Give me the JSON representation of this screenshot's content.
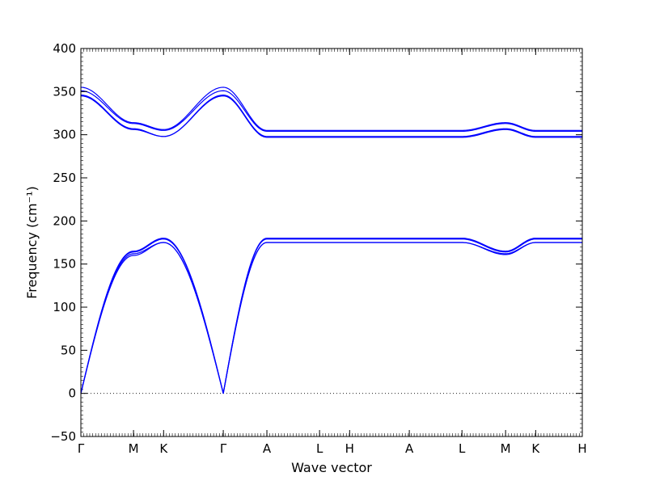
{
  "chart_data": {
    "type": "line",
    "title": "",
    "xlabel": "Wave vector",
    "ylabel": "Frequency (cm⁻¹)",
    "ylim": [
      -50,
      400
    ],
    "yticks": [
      -50,
      0,
      50,
      100,
      150,
      200,
      250,
      300,
      350,
      400
    ],
    "yticklabels": [
      "−50",
      "0",
      "50",
      "100",
      "150",
      "200",
      "250",
      "300",
      "350",
      "400"
    ],
    "high_symmetry_points": [
      {
        "label": "Γ",
        "k": 0.0
      },
      {
        "label": "M",
        "k": 0.105
      },
      {
        "label": "K",
        "k": 0.165
      },
      {
        "label": "Γ",
        "k": 0.284
      },
      {
        "label": "A",
        "k": 0.371
      },
      {
        "label": "L",
        "k": 0.476
      },
      {
        "label": "H",
        "k": 0.536
      },
      {
        "label": "A",
        "k": 0.655
      },
      {
        "label": "L",
        "k": 0.76
      },
      {
        "label": "M",
        "k": 0.847
      },
      {
        "label": "K",
        "k": 0.907
      },
      {
        "label": "H",
        "k": 1.0
      }
    ],
    "zero_line": {
      "y": 0,
      "style": "dotted"
    },
    "series_color": "#0000ff",
    "series": [
      {
        "x": [
          0.0,
          0.105,
          0.165,
          0.284,
          0.371,
          0.476,
          0.536,
          0.655,
          0.76,
          0.847,
          0.907,
          1.0
        ],
        "y": [
          0,
          160,
          175,
          0,
          175,
          175,
          175,
          175,
          175,
          161,
          175,
          175
        ]
      },
      {
        "x": [
          0.0,
          0.105,
          0.165,
          0.284,
          0.371,
          0.476,
          0.536,
          0.655,
          0.76,
          0.847,
          0.907,
          1.0
        ],
        "y": [
          0,
          162,
          175,
          0,
          175,
          175,
          175,
          175,
          175,
          162,
          175,
          175
        ]
      },
      {
        "x": [
          0.0,
          0.105,
          0.165,
          0.284,
          0.371,
          0.476,
          0.536,
          0.655,
          0.76,
          0.847,
          0.907,
          1.0
        ],
        "y": [
          0,
          164,
          179,
          0,
          179,
          179,
          179,
          179,
          179,
          164,
          179,
          179
        ]
      },
      {
        "x": [
          0.0,
          0.105,
          0.165,
          0.284,
          0.371,
          0.476,
          0.536,
          0.655,
          0.76,
          0.847,
          0.907,
          1.0
        ],
        "y": [
          0,
          165,
          180,
          0,
          180,
          180,
          180,
          180,
          180,
          165,
          180,
          180
        ]
      },
      {
        "x": [
          0.0,
          0.105,
          0.165,
          0.284,
          0.371,
          0.476,
          0.536,
          0.655,
          0.76,
          0.847,
          0.907,
          1.0
        ],
        "y": [
          345,
          306,
          298,
          345,
          297,
          297,
          297,
          297,
          297,
          306,
          297,
          297
        ]
      },
      {
        "x": [
          0.0,
          0.105,
          0.165,
          0.284,
          0.371,
          0.476,
          0.536,
          0.655,
          0.76,
          0.847,
          0.907,
          1.0
        ],
        "y": [
          346,
          307,
          298,
          346,
          298,
          298,
          298,
          298,
          298,
          307,
          298,
          298
        ]
      },
      {
        "x": [
          0.0,
          0.105,
          0.165,
          0.284,
          0.371,
          0.476,
          0.536,
          0.655,
          0.76,
          0.847,
          0.907,
          1.0
        ],
        "y": [
          351,
          313,
          305,
          351,
          304,
          304,
          304,
          304,
          304,
          313,
          304,
          304
        ]
      },
      {
        "x": [
          0.0,
          0.105,
          0.165,
          0.284,
          0.371,
          0.476,
          0.536,
          0.655,
          0.76,
          0.847,
          0.907,
          1.0
        ],
        "y": [
          355,
          314,
          306,
          355,
          305,
          305,
          305,
          305,
          305,
          314,
          305,
          305
        ]
      }
    ]
  }
}
